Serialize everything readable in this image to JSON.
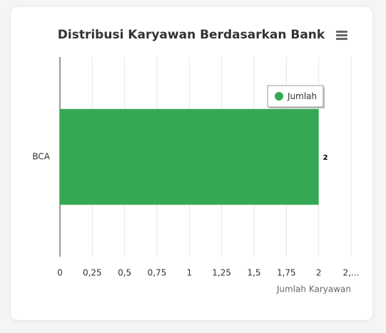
{
  "chart_data": {
    "type": "bar",
    "orientation": "horizontal",
    "title": "Distribusi Karyawan Berdasarkan Bank",
    "categories": [
      "BCA"
    ],
    "series": [
      {
        "name": "Jumlah",
        "color": "#35a853",
        "values": [
          2
        ]
      }
    ],
    "xlim": [
      0,
      2.25
    ],
    "xticks": [
      0,
      {
        "value": 0.25,
        "label": "0,25"
      },
      {
        "value": 0.5,
        "label": "0,5"
      },
      {
        "value": 0.75,
        "label": "0,75"
      },
      1,
      {
        "value": 1.25,
        "label": "1,25"
      },
      {
        "value": 1.5,
        "label": "1,5"
      },
      {
        "value": 1.75,
        "label": "1,75"
      },
      2,
      {
        "value": 2.25,
        "label": "2,..."
      }
    ],
    "xlabel": "Jumlah Karyawan",
    "grid": true,
    "legend": "top-right"
  }
}
